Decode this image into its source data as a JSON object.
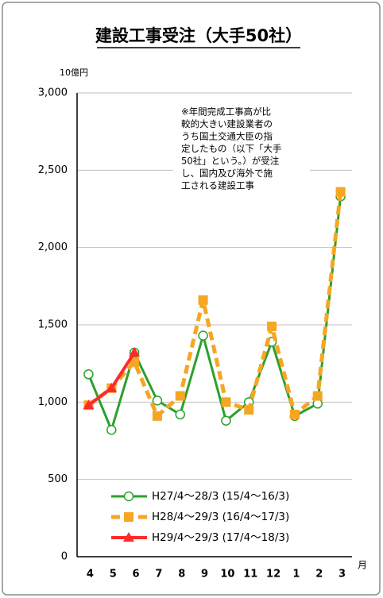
{
  "chart_data": {
    "type": "line",
    "title": "建設工事受注（大手50社）",
    "y_unit": "10億円",
    "x_unit": "月",
    "annotation": [
      "※年間完成工事高が比",
      "較的大きい建設業者の",
      "うち国土交通大臣の指",
      "定したもの（以下「大手",
      "50社」という。）が受注",
      "し、国内及び海外で施",
      "工される建設工事"
    ],
    "categories": [
      "4",
      "5",
      "6",
      "7",
      "8",
      "9",
      "10",
      "11",
      "12",
      "1",
      "2",
      "3"
    ],
    "series": [
      {
        "name": "H27/4～28/3 (15/4～16/3)",
        "color": "#2ca02c",
        "marker": "circle",
        "values": [
          1180,
          820,
          1320,
          1010,
          920,
          1430,
          880,
          1000,
          1390,
          910,
          990,
          2330
        ]
      },
      {
        "name": "H28/4～29/3 (16/4～17/3)",
        "color": "#f5a623",
        "marker": "square",
        "values": [
          980,
          1090,
          1260,
          910,
          1040,
          1660,
          1000,
          950,
          1490,
          920,
          1040,
          2360
        ]
      },
      {
        "name": "H29/4～29/3 (17/4～18/3)",
        "color": "#ff2a2a",
        "marker": "triangle",
        "values": [
          980,
          1090,
          1320,
          null,
          null,
          null,
          null,
          null,
          null,
          null,
          null,
          null
        ]
      }
    ],
    "ylim": [
      0,
      3000
    ],
    "yticks": [
      {
        "value": 0,
        "label": "0"
      },
      {
        "value": 500,
        "label": "500"
      },
      {
        "value": 1000,
        "label": "1,000"
      },
      {
        "value": 1500,
        "label": "1,500"
      },
      {
        "value": 2000,
        "label": "2,000"
      },
      {
        "value": 2500,
        "label": "2,500"
      },
      {
        "value": 3000,
        "label": "3,000"
      }
    ],
    "grid": true,
    "legend": "bottom"
  }
}
